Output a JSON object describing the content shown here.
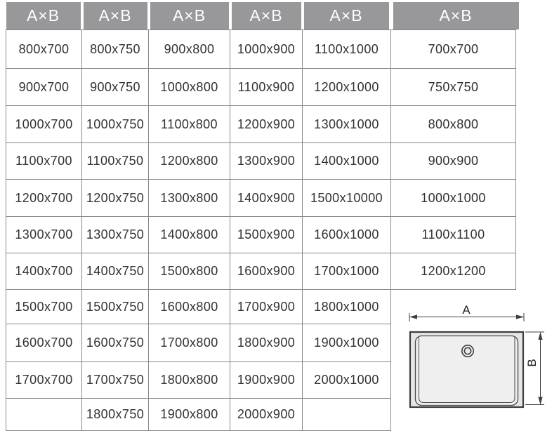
{
  "table": {
    "headers": [
      "A×B",
      "A×B",
      "A×B",
      "A×B",
      "A×B",
      "A×B"
    ],
    "main_columns": [
      [
        "800x700",
        "900x700",
        "1000x700",
        "1100x700",
        "1200x700",
        "1300x700",
        "1400x700",
        "1500x700",
        "1600x700",
        "1700x700",
        ""
      ],
      [
        "800x750",
        "900x750",
        "1000x750",
        "1100x750",
        "1200x750",
        "1300x750",
        "1400x750",
        "1500x750",
        "1600x750",
        "1700x750",
        "1800x750"
      ],
      [
        "900x800",
        "1000x800",
        "1100x800",
        "1200x800",
        "1300x800",
        "1400x800",
        "1500x800",
        "1600x800",
        "1700x800",
        "1800x800",
        "1900x800"
      ],
      [
        "1000x900",
        "1100x900",
        "1200x900",
        "1300x900",
        "1400x900",
        "1500x900",
        "1600x900",
        "1700x900",
        "1800x900",
        "1900x900",
        "2000x900"
      ],
      [
        "1100x1000",
        "1200x1000",
        "1300x1000",
        "1400x1000",
        "1500x10000",
        "1600x1000",
        "1700x1000",
        "1800x1000",
        "1900x1000",
        "2000x1000",
        ""
      ]
    ],
    "right_column": [
      "700x700",
      "750x750",
      "800x800",
      "900x900",
      "1000x1000",
      "1100x1100",
      "1200x1200"
    ]
  },
  "diagram": {
    "width_label": "A",
    "height_label": "B"
  },
  "colors": {
    "page_bg": "#ffffff",
    "header_bg": "#98989b",
    "header_text": "#ffffff",
    "grid_border": "#878787",
    "cell_text": "#323232",
    "tray_fill": "#e6e6e6",
    "basin_fill": "#efefef",
    "line": "#3d3d3d"
  }
}
